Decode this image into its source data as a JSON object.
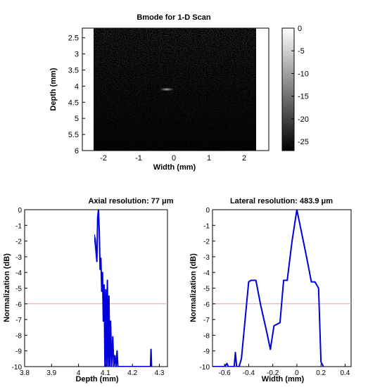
{
  "chart_data": [
    {
      "type": "heatmap",
      "title": "Bmode for 1-D Scan",
      "xlabel": "Width (mm)",
      "ylabel": "Depth (mm)",
      "xlim": [
        -2.6,
        2.7
      ],
      "ylim": [
        2.2,
        6.0
      ],
      "x_ticks": [
        "-2",
        "-1",
        "0",
        "1",
        "2"
      ],
      "y_ticks": [
        "2.5",
        "3",
        "3.5",
        "4",
        "4.5",
        "5",
        "5.5",
        "6"
      ],
      "image_x_range": [
        -2.5,
        2.5
      ],
      "point_target": {
        "x": -0.2,
        "y": 4.1
      },
      "colorbar": {
        "colormap": "gray",
        "range": [
          -27,
          0
        ],
        "ticks": [
          "0",
          "-5",
          "-10",
          "-15",
          "-20",
          "-25"
        ]
      }
    },
    {
      "type": "line",
      "title": "Axial resolution: 77 μm",
      "xlabel": "Depth (mm)",
      "ylabel": "Normalization (dB)",
      "xlim": [
        3.8,
        4.33
      ],
      "ylim": [
        -10,
        0
      ],
      "x_ticks": [
        "3.8",
        "3.9",
        "4",
        "4.1",
        "4.2",
        "4.3"
      ],
      "y_ticks": [
        "0",
        "-1",
        "-2",
        "-3",
        "-4",
        "-5",
        "-6",
        "-7",
        "-8",
        "-9",
        "-10"
      ],
      "series_color": "#0000dd",
      "threshold": {
        "y": -6,
        "color": "#e8a0a0"
      },
      "x": [
        3.8,
        3.803,
        3.806,
        3.955,
        3.957,
        3.959,
        4.052,
        4.054,
        4.058,
        4.062,
        4.065,
        4.068,
        4.071,
        4.074,
        4.077,
        4.08,
        4.083,
        4.086,
        4.089,
        4.092,
        4.095,
        4.098,
        4.101,
        4.104,
        4.107,
        4.11,
        4.113,
        4.116,
        4.119,
        4.123,
        4.127,
        4.131,
        4.135,
        4.139,
        4.143,
        4.146,
        4.149,
        4.267,
        4.269,
        4.271
      ],
      "y": [
        -10,
        -9.5,
        -10,
        -10,
        -8.2,
        -10,
        -10,
        -3.5,
        -1.6,
        -1.9,
        -2.7,
        -3.3,
        -0.5,
        0,
        -1.4,
        -3.8,
        -3.1,
        -5.2,
        -4.0,
        -7.1,
        -4.8,
        -10,
        -5.1,
        -10,
        -4.5,
        -10,
        -5.5,
        -10,
        -7.1,
        -10,
        -8.1,
        -10,
        -9.3,
        -10,
        -9.0,
        -10,
        -10,
        -10,
        -8.9,
        -10
      ]
    },
    {
      "type": "line",
      "title": "Lateral resolution: 483.9 μm",
      "xlabel": "Width (mm)",
      "ylabel": "Normalization (dB)",
      "xlim": [
        -0.7,
        0.45
      ],
      "ylim": [
        -10,
        0
      ],
      "x_ticks": [
        "-0.6",
        "-0.4",
        "-0.2",
        "0",
        "0.2",
        "0.4"
      ],
      "y_ticks": [
        "0",
        "-1",
        "-2",
        "-3",
        "-4",
        "-5",
        "-6",
        "-7",
        "-8",
        "-9",
        "-10"
      ],
      "series_color": "#0000dd",
      "threshold": {
        "y": -6,
        "color": "#e8a0a0"
      },
      "x": [
        -0.7,
        -0.6,
        -0.58,
        -0.57,
        -0.56,
        -0.52,
        -0.51,
        -0.5,
        -0.48,
        -0.46,
        -0.4,
        -0.38,
        -0.34,
        -0.3,
        -0.25,
        -0.22,
        -0.19,
        -0.14,
        -0.11,
        -0.08,
        -0.04,
        -0.02,
        0,
        0.04,
        0.08,
        0.12,
        0.15,
        0.18,
        0.2,
        0.22
      ],
      "y": [
        -10,
        -10,
        -9.8,
        -10,
        -10,
        -10,
        -9.1,
        -10,
        -10,
        -9.5,
        -4.6,
        -4.5,
        -4.5,
        -6.1,
        -7.8,
        -8.9,
        -7.4,
        -7.2,
        -4.5,
        -4.5,
        -2.0,
        -1.0,
        0,
        -1.5,
        -3.0,
        -4.6,
        -4.6,
        -5.0,
        -9.7,
        -10
      ]
    }
  ]
}
